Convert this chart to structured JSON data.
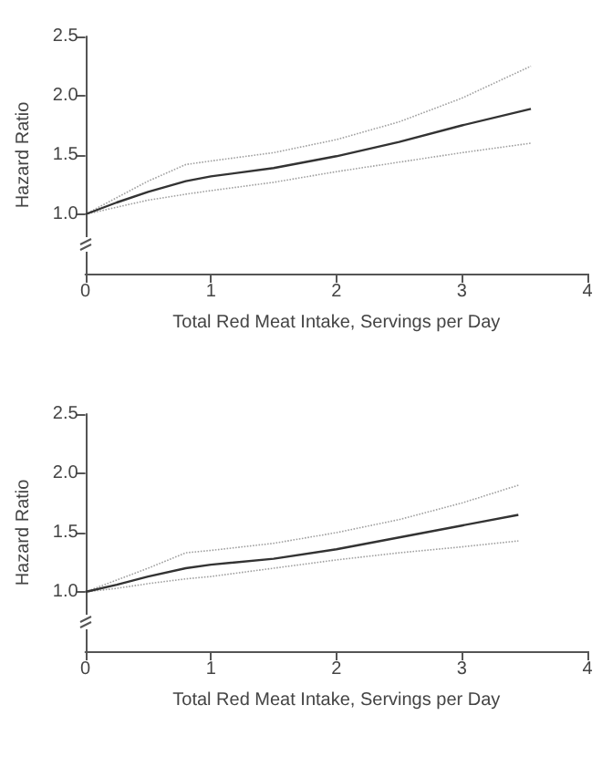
{
  "chart_data": [
    {
      "type": "line",
      "xlabel": "Total Red Meat Intake, Servings per Day",
      "ylabel": "Hazard Ratio",
      "xlim": [
        0,
        4
      ],
      "xticks": [
        0,
        1,
        2,
        3,
        4
      ],
      "ylim": [
        0.5,
        2.5
      ],
      "yticks": [
        {
          "value": 1,
          "label": "1.0"
        },
        {
          "value": 1.5,
          "label": "1.5"
        },
        {
          "value": 2,
          "label": "2.0"
        },
        {
          "value": 2.5,
          "label": "2.5"
        }
      ],
      "grid": false,
      "marker": "none",
      "series": [
        {
          "color": "#333333",
          "line_style": "solid",
          "x": [
            0,
            0.25,
            0.5,
            0.8,
            1,
            1.5,
            2,
            2.5,
            3,
            3.55
          ],
          "values": [
            1.0,
            1.1,
            1.19,
            1.28,
            1.32,
            1.39,
            1.49,
            1.61,
            1.75,
            1.89
          ]
        },
        {
          "color": "#a0a0a0",
          "line_style": "dotted",
          "x": [
            0,
            0.25,
            0.5,
            0.8,
            1,
            1.5,
            2,
            2.5,
            3,
            3.55
          ],
          "values": [
            1.0,
            1.06,
            1.12,
            1.17,
            1.2,
            1.27,
            1.36,
            1.44,
            1.52,
            1.6
          ]
        },
        {
          "color": "#a0a0a0",
          "line_style": "dotted",
          "x": [
            0,
            0.25,
            0.5,
            0.8,
            1,
            1.5,
            2,
            2.5,
            3,
            3.55
          ],
          "values": [
            1.0,
            1.14,
            1.28,
            1.42,
            1.45,
            1.52,
            1.63,
            1.78,
            1.98,
            2.25
          ]
        }
      ]
    },
    {
      "type": "line",
      "xlabel": "Total Red Meat Intake, Servings per Day",
      "ylabel": "Hazard Ratio",
      "xlim": [
        0,
        4
      ],
      "xticks": [
        0,
        1,
        2,
        3,
        4
      ],
      "ylim": [
        0.5,
        2.5
      ],
      "yticks": [
        {
          "value": 1,
          "label": "1.0"
        },
        {
          "value": 1.5,
          "label": "1.5"
        },
        {
          "value": 2,
          "label": "2.0"
        },
        {
          "value": 2.5,
          "label": "2.5"
        }
      ],
      "grid": false,
      "marker": "none",
      "series": [
        {
          "color": "#333333",
          "line_style": "solid",
          "x": [
            0,
            0.25,
            0.5,
            0.8,
            1,
            1.5,
            2,
            2.5,
            3,
            3.45
          ],
          "values": [
            1.0,
            1.06,
            1.13,
            1.2,
            1.23,
            1.28,
            1.36,
            1.46,
            1.56,
            1.65
          ]
        },
        {
          "color": "#a0a0a0",
          "line_style": "dotted",
          "x": [
            0,
            0.25,
            0.5,
            0.8,
            1,
            1.5,
            2,
            2.5,
            3,
            3.45
          ],
          "values": [
            1.0,
            1.03,
            1.07,
            1.11,
            1.13,
            1.2,
            1.27,
            1.33,
            1.38,
            1.43
          ]
        },
        {
          "color": "#a0a0a0",
          "line_style": "dotted",
          "x": [
            0,
            0.25,
            0.5,
            0.8,
            1,
            1.5,
            2,
            2.5,
            3,
            3.45
          ],
          "values": [
            1.0,
            1.1,
            1.2,
            1.33,
            1.35,
            1.41,
            1.5,
            1.61,
            1.75,
            1.9
          ]
        }
      ]
    }
  ]
}
